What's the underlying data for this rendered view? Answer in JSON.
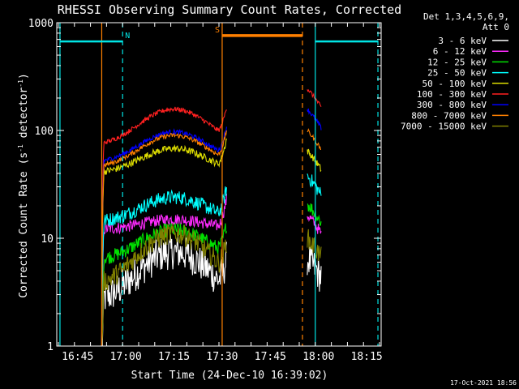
{
  "colors": {
    "background": "#000000",
    "axes": "#ffffff",
    "attenuator_marker": "#ff8000",
    "saa_marker": "#00e5e5"
  },
  "chart_data": {
    "type": "line",
    "title": "RHESSI Observing Summary Count Rates, Corrected",
    "xlabel": "Start Time (24-Dec-10 16:39:02)",
    "ylabel_parts": [
      "Corrected Count Rate (s",
      "-1",
      " detector",
      "-1",
      ")"
    ],
    "ylabel": "Corrected Count Rate (s-1 detector-1)",
    "y_scale": "log",
    "ylim": [
      1,
      1000
    ],
    "y_ticks": [
      "1",
      "10",
      "100",
      "1000"
    ],
    "xlim_minutes": [
      -0.5,
      100.5
    ],
    "x_ticks": [
      "16:45",
      "17:00",
      "17:15",
      "17:30",
      "17:45",
      "18:00",
      "18:15"
    ],
    "x_tick_minutes": [
      6,
      21,
      36,
      51,
      66,
      81,
      96
    ],
    "grid": false,
    "legend_position": "right",
    "legend_title": [
      "Det 1,3,4,5,6,9,",
      "Att 0"
    ],
    "series": [
      {
        "name": "3 - 6 keV",
        "color": "#ffffff",
        "base": 2.5,
        "peak": 7.5,
        "pre": 2.2,
        "post": 6.5,
        "noise": 0.3
      },
      {
        "name": "6 - 12 keV",
        "color": "#ff2bff",
        "base": 12,
        "peak": 15,
        "pre": 11.5,
        "post": 16.5,
        "noise": 0.1
      },
      {
        "name": "12 - 25 keV",
        "color": "#00e000",
        "base": 6.2,
        "peak": 12,
        "pre": 6,
        "post": 21,
        "noise": 0.12
      },
      {
        "name": "25 - 50 keV",
        "color": "#00ffff",
        "base": 14,
        "peak": 24,
        "pre": 13.5,
        "post": 38,
        "noise": 0.12
      },
      {
        "name": "50 - 100 keV",
        "color": "#dddd00",
        "base": 40,
        "peak": 68,
        "pre": 40,
        "post": 65,
        "noise": 0.06
      },
      {
        "name": "100 - 300 keV",
        "color": "#ff2020",
        "base": 72,
        "peak": 158,
        "pre": 72,
        "post": 245,
        "noise": 0.04
      },
      {
        "name": "300 - 800 keV",
        "color": "#0000ff",
        "base": 50,
        "peak": 97,
        "pre": 50,
        "post": 158,
        "noise": 0.04
      },
      {
        "name": "800 - 7000 keV",
        "color": "#ff8000",
        "base": 45,
        "peak": 90,
        "pre": 45,
        "post": 100,
        "noise": 0.04
      },
      {
        "name": "7000 - 15000 keV",
        "color": "#808000",
        "base": 3.5,
        "peak": 11,
        "pre": 3.5,
        "post": 10,
        "noise": 0.18
      }
    ],
    "segments": [
      {
        "start_min": 13.5,
        "end_min": 52.5,
        "profile": "orbit_day"
      },
      {
        "start_min": 77.5,
        "end_min": 82,
        "profile": "post_gap"
      }
    ],
    "markers": [
      {
        "label": "N",
        "kind": "saa",
        "x_start": 0.5,
        "x_end": 20,
        "level": 670,
        "color": "#00e5e5"
      },
      {
        "label": "S",
        "kind": "attenuator",
        "x_start": 51,
        "x_end": 76,
        "level": 760,
        "color": "#ff8000"
      },
      {
        "label": "",
        "kind": "saa_end",
        "x_start": 80,
        "x_end": 99.5,
        "level": 670,
        "color": "#00e5e5"
      }
    ],
    "vertical_lines": [
      {
        "x": 0.5,
        "color": "#00e5e5",
        "style": "solid"
      },
      {
        "x": 20,
        "color": "#00e5e5",
        "style": "dashed"
      },
      {
        "x": 13.5,
        "color": "#ff8000",
        "style": "solid"
      },
      {
        "x": 51,
        "color": "#ff8000",
        "style": "solid"
      },
      {
        "x": 76,
        "color": "#ff8000",
        "style": "dashed"
      },
      {
        "x": 80,
        "color": "#00e5e5",
        "style": "solid"
      },
      {
        "x": 99.5,
        "color": "#00e5e5",
        "style": "dashed"
      }
    ]
  },
  "footer": {
    "timestamp": "17-Oct-2021 18:56"
  }
}
